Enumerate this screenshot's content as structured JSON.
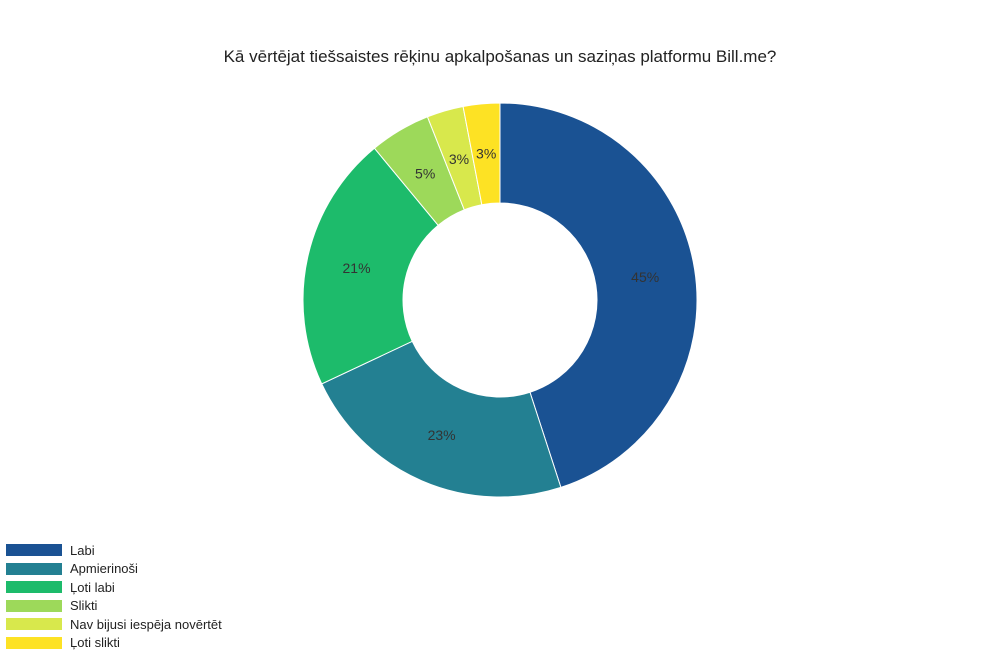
{
  "chart_data": {
    "type": "pie",
    "donut": true,
    "title": "Kā vērtējat tiešsaistes rēķinu apkalpošanas un saziņas platformu Bill.me?",
    "legend_position": "bottom-left",
    "slices": [
      {
        "label": "Labi",
        "value": 45,
        "display": "45%",
        "color": "#1a5293"
      },
      {
        "label": "Apmierinoši",
        "value": 23,
        "display": "23%",
        "color": "#238092"
      },
      {
        "label": "Ļoti labi",
        "value": 21,
        "display": "21%",
        "color": "#1dbb6b"
      },
      {
        "label": "Slikti",
        "value": 5,
        "display": "5%",
        "color": "#9dd95a"
      },
      {
        "label": "Nav bijusi iespēja novērtēt",
        "value": 3,
        "display": "3%",
        "color": "#d8e84c"
      },
      {
        "label": "Ļoti slikti",
        "value": 3,
        "display": "3%",
        "color": "#fde224"
      }
    ]
  }
}
